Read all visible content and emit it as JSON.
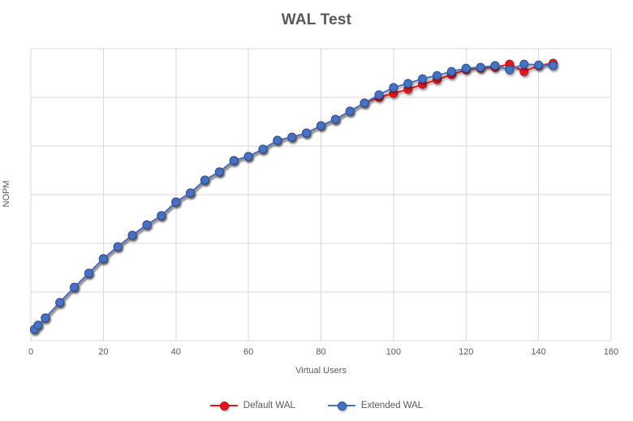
{
  "window": {
    "title": "WAL Test"
  },
  "colors": {
    "title_text": "#595959",
    "axis_text": "#595959",
    "gridline": "#d9d9d9",
    "default_wal_red": "#e8131d",
    "default_wal_red_border": "#b2121a",
    "extended_wal_blue": "#4472c4",
    "extended_wal_blue_border": "#2e4d8c",
    "background": "#ffffff"
  },
  "chart_data": {
    "type": "line",
    "title": "WAL Test",
    "xlabel": "Virtual Users",
    "ylabel": "NOPM",
    "xlim": [
      0,
      160
    ],
    "xticks": [
      0,
      20,
      40,
      60,
      80,
      100,
      120,
      140,
      160
    ],
    "y_axis": {
      "tick_labels_visible": false,
      "gridline_divisions": 6
    },
    "grid": true,
    "legend_position": "bottom",
    "marker": "circle",
    "y_unit_note": "y-axis has no numeric tick labels; y_percent = estimated % of full axis height",
    "x": [
      1,
      2,
      4,
      8,
      12,
      16,
      20,
      24,
      28,
      32,
      36,
      40,
      44,
      48,
      52,
      56,
      60,
      64,
      68,
      72,
      76,
      80,
      84,
      88,
      92,
      96,
      100,
      104,
      108,
      112,
      116,
      120,
      124,
      128,
      132,
      136,
      140,
      144
    ],
    "series": [
      {
        "name": "Default WAL",
        "color": "#e8131d",
        "marker_stroke": "#b2121a",
        "y_percent": [
          3.9,
          5.3,
          7.8,
          13.1,
          18.3,
          23.1,
          28.1,
          32.2,
          36.1,
          39.7,
          42.8,
          47.5,
          50.6,
          55.0,
          57.8,
          61.7,
          63.1,
          65.6,
          68.6,
          69.7,
          71.1,
          73.6,
          75.8,
          78.6,
          81.4,
          83.3,
          84.7,
          86.1,
          87.8,
          89.4,
          91.1,
          92.8,
          93.3,
          93.6,
          94.7,
          92.2,
          94.2,
          95.0
        ]
      },
      {
        "name": "Extended WAL",
        "color": "#4472c4",
        "marker_stroke": "#2e4d8c",
        "y_percent": [
          3.9,
          5.3,
          7.8,
          13.1,
          18.3,
          23.1,
          28.1,
          32.2,
          36.1,
          39.7,
          42.8,
          47.5,
          50.6,
          55.0,
          57.8,
          61.7,
          63.1,
          65.6,
          68.6,
          69.7,
          71.1,
          73.6,
          75.8,
          78.6,
          81.4,
          84.2,
          86.7,
          88.1,
          89.7,
          90.8,
          92.2,
          93.3,
          93.6,
          94.2,
          92.8,
          94.7,
          94.4,
          94.2
        ]
      }
    ]
  }
}
